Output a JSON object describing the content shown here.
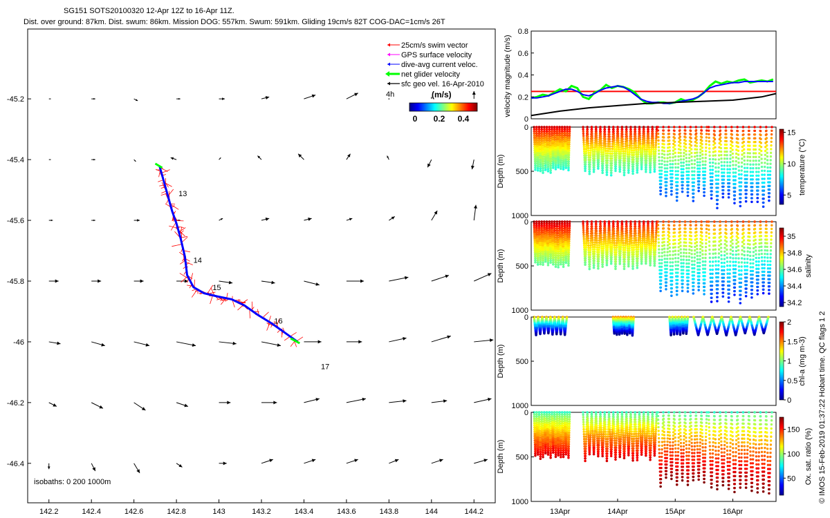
{
  "header": {
    "line1": "SG151 SOTS20100320 12-Apr 12Z to 16-Apr 11Z.",
    "line2": "Dist. over ground: 87km. Dist. swum: 86km. Mission DOG: 557km. Swum: 591km. Gliding 19cm/s 82T COG-DAC=1cm/s 26T"
  },
  "colors": {
    "swim_vector": "#ff0000",
    "gps_surface": "#ff00ff",
    "dac": "#0000ff",
    "net_velocity": "#00ff00",
    "sfc_geo": "#000000",
    "threshold_line": "#ff0000"
  },
  "credit": "© IMOS 15-Feb-2019 01:37:22 Hobart time. QC flags 1  2",
  "chart_data": [
    {
      "id": "map",
      "type": "scatter",
      "xlim": [
        142.1,
        144.3
      ],
      "ylim": [
        -46.53,
        -44.97
      ],
      "xticks": [
        142.2,
        142.4,
        142.6,
        142.8,
        143,
        143.2,
        143.4,
        143.6,
        143.8,
        144,
        144.2
      ],
      "xtick_labels": [
        "142.2",
        "142.4",
        "142.6",
        "142.8",
        "143",
        "143.2",
        "143.4",
        "143.6",
        "143.8",
        "144",
        "144.2"
      ],
      "yticks": [
        -45.2,
        -45.4,
        -45.6,
        -45.8,
        -46,
        -46.2,
        -46.4
      ],
      "ytick_labels": [
        "-45.2",
        "-45.4",
        "-45.6",
        "-45.8",
        "-46",
        "-46.2",
        "-46.4"
      ],
      "legend": {
        "position": "top-right",
        "entries": [
          "25cm/s swim vector",
          "GPS surface velocity",
          "dive-avg current veloc.",
          "net glider velocity",
          "sfc geo vel. 16-Apr-2010"
        ],
        "scale_label": "4h",
        "colorbar_unit": "(m/s)",
        "colorbar_ticks": [
          "0",
          "0.2",
          "0.4"
        ]
      },
      "isobaths_label": "isobaths: 0   200  1000m",
      "day_labels": [
        {
          "text": "13",
          "lon": 142.81,
          "lat": -45.52
        },
        {
          "text": "14",
          "lon": 142.88,
          "lat": -45.74
        },
        {
          "text": "15",
          "lon": 142.97,
          "lat": -45.83
        },
        {
          "text": "16",
          "lon": 143.26,
          "lat": -45.94
        },
        {
          "text": "17",
          "lon": 143.48,
          "lat": -46.09
        }
      ],
      "track": [
        {
          "lon": 142.72,
          "lat": -45.42
        },
        {
          "lon": 142.74,
          "lat": -45.47
        },
        {
          "lon": 142.76,
          "lat": -45.52
        },
        {
          "lon": 142.78,
          "lat": -45.57
        },
        {
          "lon": 142.8,
          "lat": -45.61
        },
        {
          "lon": 142.82,
          "lat": -45.66
        },
        {
          "lon": 142.84,
          "lat": -45.72
        },
        {
          "lon": 142.85,
          "lat": -45.78
        },
        {
          "lon": 142.88,
          "lat": -45.82
        },
        {
          "lon": 142.93,
          "lat": -45.84
        },
        {
          "lon": 142.99,
          "lat": -45.85
        },
        {
          "lon": 143.06,
          "lat": -45.86
        },
        {
          "lon": 143.12,
          "lat": -45.88
        },
        {
          "lon": 143.18,
          "lat": -45.91
        },
        {
          "lon": 143.25,
          "lat": -45.94
        },
        {
          "lon": 143.31,
          "lat": -45.97
        },
        {
          "lon": 143.37,
          "lat": -46.0
        }
      ],
      "geo_vel": {
        "lons": [
          142.2,
          142.4,
          142.6,
          142.8,
          143.0,
          143.2,
          143.4,
          143.6,
          143.8,
          144.0,
          144.2
        ],
        "lats": [
          -45.2,
          -45.4,
          -45.6,
          -45.8,
          -46.0,
          -46.2,
          -46.4
        ],
        "u": [
          [
            0.01,
            0.02,
            0.02,
            0.02,
            0.03,
            0.04,
            0.06,
            0.06,
            0.0,
            0.0,
            0.0
          ],
          [
            0.01,
            0.02,
            0.01,
            -0.03,
            0.01,
            -0.02,
            -0.03,
            0.02,
            -0.01,
            -0.02,
            -0.01
          ],
          [
            0.02,
            0.02,
            0.03,
            0.02,
            0.02,
            0.04,
            0.04,
            0.03,
            0.03,
            0.03,
            0.01
          ],
          [
            0.05,
            0.05,
            0.05,
            0.06,
            0.07,
            0.07,
            0.08,
            0.09,
            0.1,
            0.09,
            0.09
          ],
          [
            0.06,
            0.07,
            0.08,
            0.1,
            0.09,
            0.1,
            0.09,
            0.08,
            0.09,
            0.1,
            0.1
          ],
          [
            0.04,
            0.06,
            0.06,
            0.06,
            0.06,
            0.08,
            0.08,
            0.1,
            0.09,
            0.08,
            0.09
          ],
          [
            0.0,
            0.02,
            0.03,
            0.03,
            0.04,
            0.06,
            0.06,
            0.06,
            0.05,
            0.06,
            0.07
          ]
        ],
        "v": [
          [
            0.0,
            0.0,
            -0.01,
            0.0,
            0.0,
            0.01,
            0.02,
            0.03,
            0.0,
            0.01,
            0.04
          ],
          [
            0.0,
            0.0,
            -0.01,
            0.01,
            0.01,
            0.02,
            0.03,
            0.03,
            0.02,
            -0.04,
            -0.05
          ],
          [
            0.0,
            0.0,
            0.0,
            0.0,
            0.01,
            0.01,
            0.01,
            0.01,
            0.02,
            0.05,
            0.08
          ],
          [
            0.0,
            0.0,
            0.0,
            0.0,
            -0.01,
            -0.01,
            -0.02,
            0.0,
            0.02,
            0.03,
            0.04
          ],
          [
            -0.01,
            -0.02,
            -0.02,
            -0.02,
            -0.01,
            -0.02,
            0.0,
            0.0,
            0.02,
            0.03,
            0.01
          ],
          [
            -0.02,
            -0.03,
            -0.04,
            -0.02,
            0.0,
            0.0,
            0.02,
            0.02,
            0.01,
            0.01,
            0.02
          ],
          [
            -0.03,
            -0.04,
            -0.05,
            -0.02,
            0.0,
            0.02,
            0.02,
            0.02,
            0.02,
            0.02,
            0.02
          ]
        ]
      }
    },
    {
      "id": "velocity",
      "type": "line",
      "ylabel": "velocity magnitude (m/s)",
      "xlim": [
        12.5,
        16.75
      ],
      "ylim": [
        0,
        0.8
      ],
      "yticks": [
        0,
        0.2,
        0.4,
        0.6,
        0.8
      ],
      "ytick_labels": [
        "0",
        "0.2",
        "0.4",
        "0.6",
        "0.8"
      ],
      "threshold": 0.25,
      "series": [
        {
          "color": "#00ff00",
          "x": [
            12.5,
            12.6,
            12.7,
            12.8,
            12.9,
            13.0,
            13.1,
            13.2,
            13.3,
            13.4,
            13.5,
            13.6,
            13.7,
            13.8,
            13.9,
            14.0,
            14.1,
            14.2,
            14.3,
            14.4,
            14.5,
            14.6,
            14.7,
            14.8,
            14.9,
            15.0,
            15.1,
            15.2,
            15.3,
            15.4,
            15.5,
            15.6,
            15.7,
            15.8,
            15.9,
            16.0,
            16.1,
            16.2,
            16.3,
            16.4,
            16.5,
            16.6,
            16.7
          ],
          "y": [
            0.19,
            0.2,
            0.22,
            0.21,
            0.24,
            0.27,
            0.25,
            0.3,
            0.28,
            0.2,
            0.18,
            0.24,
            0.26,
            0.31,
            0.28,
            0.3,
            0.29,
            0.27,
            0.24,
            0.18,
            0.14,
            0.14,
            0.15,
            0.15,
            0.14,
            0.15,
            0.18,
            0.16,
            0.17,
            0.2,
            0.24,
            0.3,
            0.34,
            0.32,
            0.34,
            0.33,
            0.35,
            0.36,
            0.33,
            0.34,
            0.35,
            0.34,
            0.36
          ]
        },
        {
          "color": "#0000ff",
          "x": [
            12.5,
            12.6,
            12.7,
            12.8,
            12.9,
            13.0,
            13.1,
            13.2,
            13.3,
            13.4,
            13.5,
            13.6,
            13.7,
            13.8,
            13.9,
            14.0,
            14.1,
            14.2,
            14.3,
            14.4,
            14.5,
            14.6,
            14.7,
            14.8,
            14.9,
            15.0,
            15.1,
            15.2,
            15.3,
            15.4,
            15.5,
            15.6,
            15.7,
            15.8,
            15.9,
            16.0,
            16.1,
            16.2,
            16.3,
            16.4,
            16.5,
            16.6,
            16.7
          ],
          "y": [
            0.19,
            0.19,
            0.2,
            0.21,
            0.23,
            0.25,
            0.27,
            0.27,
            0.25,
            0.22,
            0.21,
            0.23,
            0.26,
            0.28,
            0.29,
            0.3,
            0.29,
            0.26,
            0.22,
            0.18,
            0.16,
            0.15,
            0.15,
            0.14,
            0.14,
            0.15,
            0.16,
            0.17,
            0.18,
            0.2,
            0.24,
            0.28,
            0.3,
            0.31,
            0.32,
            0.33,
            0.33,
            0.34,
            0.34,
            0.34,
            0.34,
            0.34,
            0.34
          ]
        },
        {
          "color": "#000000",
          "x": [
            12.5,
            13.0,
            13.5,
            14.0,
            14.5,
            15.0,
            15.5,
            16.0,
            16.5,
            16.75
          ],
          "y": [
            0.03,
            0.07,
            0.1,
            0.12,
            0.14,
            0.15,
            0.16,
            0.17,
            0.2,
            0.23
          ]
        }
      ]
    },
    {
      "id": "temperature",
      "type": "scatter",
      "ylabel": "Depth (m)",
      "ylim": [
        1000,
        0
      ],
      "yticks": [
        0,
        500,
        1000
      ],
      "ytick_labels": [
        "0",
        "500",
        "1000"
      ],
      "colorbar_label": "temperature (°C)",
      "colorbar_ticks": [
        "15",
        "10",
        "5"
      ],
      "colorbar_range": [
        3.5,
        15.5
      ],
      "dives": [
        {
          "t0": 12.55,
          "t1": 13.17,
          "n": 14,
          "max_depth": 500,
          "v_top": 14.5,
          "v_bottom": 8.5
        },
        {
          "t0": 13.4,
          "t1": 14.68,
          "n": 17,
          "max_depth": 520,
          "v_top": 14.5,
          "v_bottom": 8.5
        },
        {
          "t0": 14.7,
          "t1": 15.55,
          "n": 9,
          "max_depth": 800,
          "v_top": 14.0,
          "v_bottom": 6.0
        },
        {
          "t0": 15.58,
          "t1": 16.68,
          "n": 11,
          "max_depth": 880,
          "v_top": 14.0,
          "v_bottom": 5.5
        }
      ]
    },
    {
      "id": "salinity",
      "type": "scatter",
      "ylabel": "Depth (m)",
      "ylim": [
        1000,
        0
      ],
      "yticks": [
        0,
        500,
        1000
      ],
      "ytick_labels": [
        "0",
        "500",
        "1000"
      ],
      "colorbar_label": "salinity",
      "colorbar_ticks": [
        "35",
        "34.8",
        "34.6",
        "34.4",
        "34.2"
      ],
      "colorbar_range": [
        34.15,
        35.1
      ],
      "dives": [
        {
          "t0": 12.55,
          "t1": 13.17,
          "n": 14,
          "max_depth": 500,
          "v_top": 35.05,
          "v_bottom": 34.6
        },
        {
          "t0": 13.4,
          "t1": 14.68,
          "n": 17,
          "max_depth": 520,
          "v_top": 35.0,
          "v_bottom": 34.6
        },
        {
          "t0": 14.7,
          "t1": 15.55,
          "n": 9,
          "max_depth": 800,
          "v_top": 34.9,
          "v_bottom": 34.4
        },
        {
          "t0": 15.58,
          "t1": 16.68,
          "n": 11,
          "max_depth": 880,
          "v_top": 34.9,
          "v_bottom": 34.3
        }
      ]
    },
    {
      "id": "chla",
      "type": "scatter",
      "ylabel": "Depth (m)",
      "ylim": [
        1000,
        0
      ],
      "yticks": [
        0,
        500,
        1000
      ],
      "ytick_labels": [
        "0",
        "500",
        "1000"
      ],
      "colorbar_label": "chl-a (mg m-3)",
      "colorbar_ticks": [
        "2",
        "1.5",
        "1",
        "0.5",
        "0"
      ],
      "colorbar_range": [
        0,
        2
      ],
      "dives": [
        {
          "t0": 12.55,
          "t1": 13.12,
          "n": 8,
          "max_depth": 200,
          "v_top": 1.4,
          "v_bottom": 0.05
        },
        {
          "t0": 13.92,
          "t1": 14.28,
          "n": 8,
          "max_depth": 200,
          "v_top": 1.5,
          "v_bottom": 0.05
        },
        {
          "t0": 14.9,
          "t1": 15.22,
          "n": 6,
          "max_depth": 200,
          "v_top": 1.3,
          "v_bottom": 0.05
        },
        {
          "t0": 15.32,
          "t1": 16.62,
          "n": 8,
          "max_depth": 200,
          "v_top": 1.3,
          "v_bottom": 0.05
        }
      ]
    },
    {
      "id": "oxygen",
      "type": "scatter",
      "ylabel": "Depth (m)",
      "ylim": [
        1000,
        0
      ],
      "yticks": [
        0,
        500,
        1000
      ],
      "ytick_labels": [
        "0",
        "500",
        "1000"
      ],
      "colorbar_label": "Ox. sat. ratio (%)",
      "colorbar_ticks": [
        "150",
        "100",
        "50"
      ],
      "colorbar_range": [
        15,
        175
      ],
      "xticks": [
        13,
        14,
        15,
        16
      ],
      "xtick_labels": [
        "13Apr",
        "14Apr",
        "15Apr",
        "16Apr"
      ],
      "dives": [
        {
          "t0": 12.55,
          "t1": 13.17,
          "n": 14,
          "max_depth": 500,
          "v_top": 85,
          "v_bottom": 160
        },
        {
          "t0": 13.4,
          "t1": 14.68,
          "n": 17,
          "max_depth": 520,
          "v_top": 85,
          "v_bottom": 160
        },
        {
          "t0": 14.7,
          "t1": 15.55,
          "n": 9,
          "max_depth": 800,
          "v_top": 85,
          "v_bottom": 175
        },
        {
          "t0": 15.58,
          "t1": 16.68,
          "n": 11,
          "max_depth": 880,
          "v_top": 85,
          "v_bottom": 175
        }
      ]
    }
  ]
}
